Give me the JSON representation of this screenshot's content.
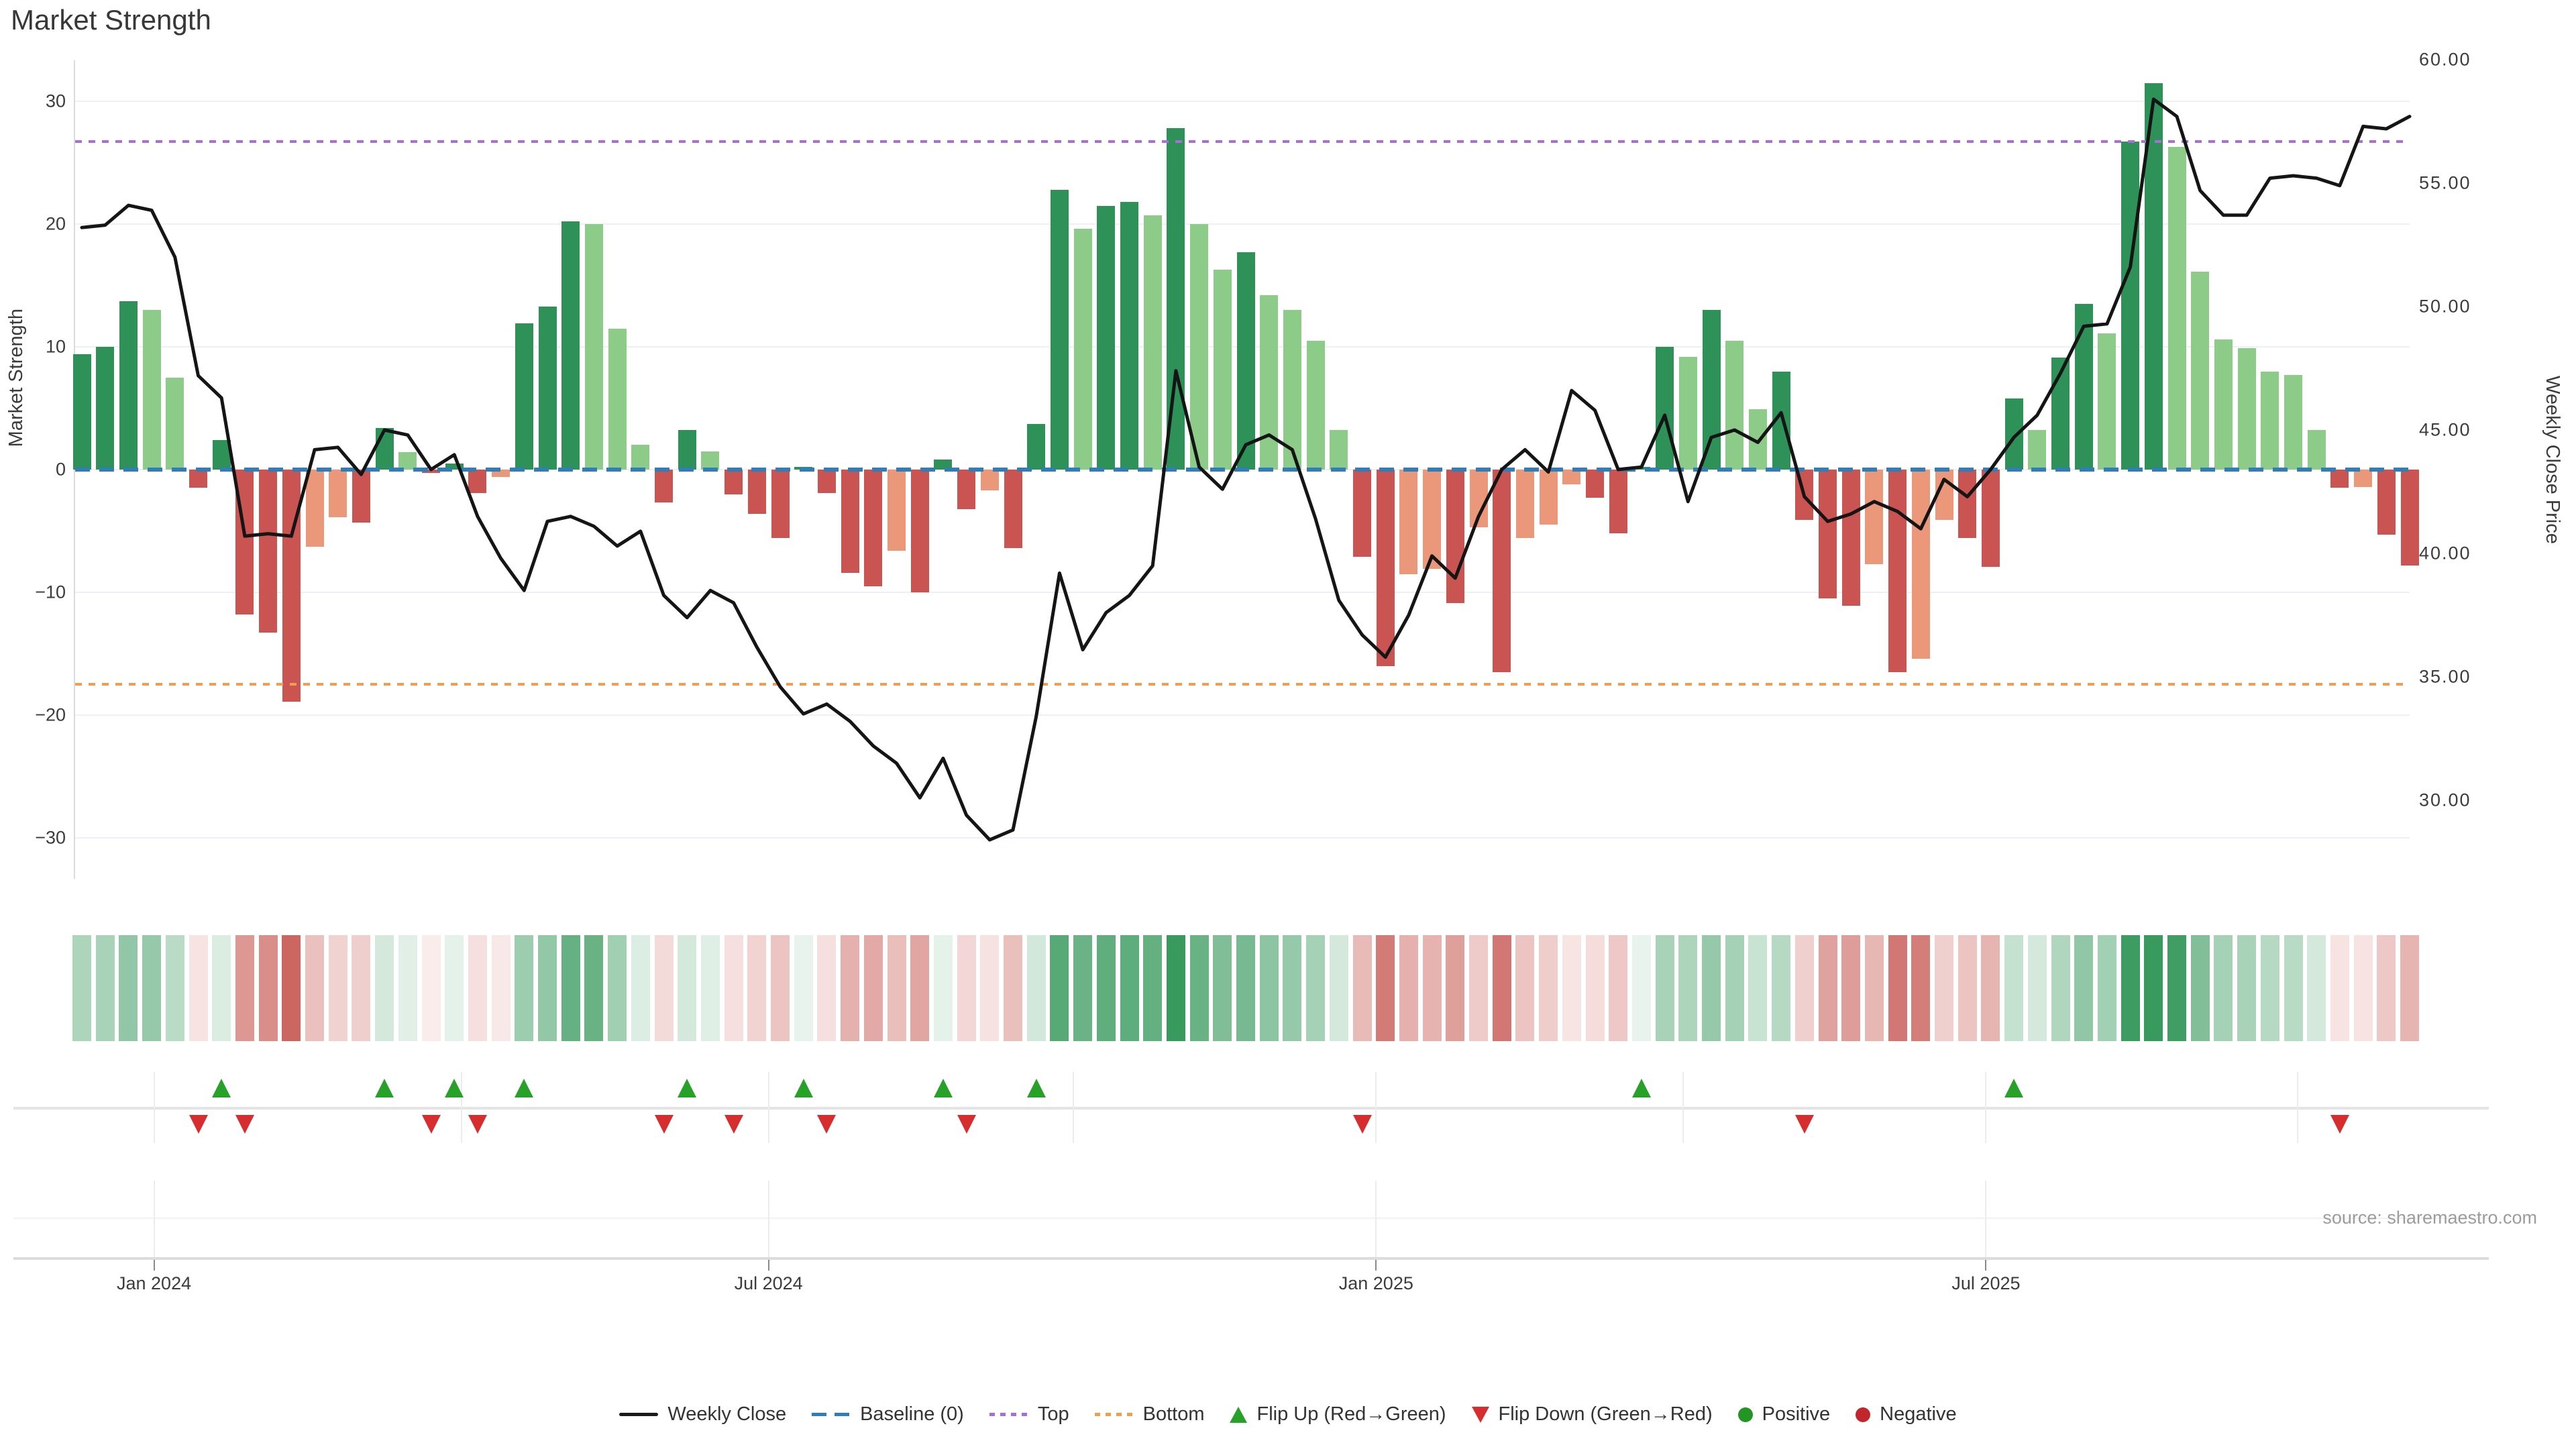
{
  "title": "Market Strength",
  "source_text": "source: sharemaestro.com",
  "axes": {
    "left_label": "Market Strength",
    "right_label": "Weekly Close Price",
    "left_ticks": [
      {
        "v": 30,
        "label": "30"
      },
      {
        "v": 20,
        "label": "20"
      },
      {
        "v": 10,
        "label": "10"
      },
      {
        "v": 0,
        "label": "0"
      },
      {
        "v": -10,
        "label": "−10"
      },
      {
        "v": -20,
        "label": "−20"
      },
      {
        "v": -30,
        "label": "−30"
      }
    ],
    "right_ticks": [
      {
        "v": 60,
        "label": "60.00"
      },
      {
        "v": 55,
        "label": "55.00"
      },
      {
        "v": 50,
        "label": "50.00"
      },
      {
        "v": 45,
        "label": "45.00"
      },
      {
        "v": 40,
        "label": "40.00"
      },
      {
        "v": 35,
        "label": "35.00"
      },
      {
        "v": 30,
        "label": "30.00"
      }
    ],
    "x_ticks": [
      {
        "week": 4.1,
        "label": "Jan 2024"
      },
      {
        "week": 30.5,
        "label": "Jul 2024"
      },
      {
        "week": 56.6,
        "label": "Jan 2025"
      },
      {
        "week": 82.8,
        "label": "Jul 2025"
      }
    ],
    "quarter_weeks": [
      4.1,
      17.3,
      30.5,
      43.6,
      56.6,
      69.8,
      82.8,
      96.2
    ]
  },
  "chart_data": {
    "type": "bar",
    "note": "weekly data, ~Dec 2023 to Nov 2025; bars = Market Strength (left axis), line = Weekly Close price (right axis)",
    "left_axis_range": [
      -33.3,
      33.3
    ],
    "right_axis_range": [
      28.0,
      60.2
    ],
    "reference_lines": {
      "baseline": 0,
      "top": 26.7,
      "bottom": -17.5
    },
    "series": [
      {
        "name": "Market Strength",
        "type": "bar",
        "axis": "left",
        "values": [
          9.4,
          10.0,
          13.7,
          13.0,
          7.5,
          -1.5,
          2.4,
          -11.8,
          -13.3,
          -18.9,
          -6.3,
          -3.9,
          -4.3,
          3.4,
          1.4,
          -0.3,
          0.5,
          -1.9,
          -0.6,
          11.9,
          13.3,
          20.2,
          20.0,
          11.5,
          2.0,
          -2.7,
          3.2,
          1.5,
          -2.0,
          -3.6,
          -5.6,
          0.2,
          -1.9,
          -8.4,
          -9.5,
          -6.6,
          -10.0,
          0.8,
          -3.2,
          -1.7,
          -6.4,
          3.7,
          22.8,
          19.6,
          21.5,
          21.8,
          20.7,
          27.8,
          20.0,
          16.3,
          17.7,
          14.2,
          13.0,
          10.5,
          3.2,
          -7.1,
          -16.0,
          -8.5,
          -8.1,
          -10.9,
          -4.7,
          -16.5,
          -5.6,
          -4.5,
          -1.2,
          -2.3,
          -5.2,
          0.2,
          10.0,
          9.2,
          13.0,
          10.5,
          4.9,
          8.0,
          -4.1,
          -10.5,
          -11.1,
          -7.7,
          -16.5,
          -15.4,
          -4.1,
          -5.6,
          -7.9,
          5.8,
          3.2,
          9.1,
          13.5,
          11.1,
          26.7,
          31.5,
          26.3,
          16.1,
          10.6,
          9.9,
          8.0,
          7.7,
          3.2,
          -1.5,
          -1.4,
          -5.3,
          -7.8
        ]
      },
      {
        "name": "Weekly Close",
        "type": "line",
        "axis": "right",
        "values": [
          53.2,
          53.3,
          54.1,
          53.9,
          52.0,
          47.2,
          46.3,
          40.7,
          40.8,
          40.7,
          44.2,
          44.3,
          43.2,
          45.0,
          44.8,
          43.4,
          44.0,
          41.5,
          39.8,
          38.5,
          41.3,
          41.5,
          41.1,
          40.3,
          40.9,
          38.3,
          37.4,
          38.5,
          38.0,
          36.2,
          34.6,
          33.5,
          33.9,
          33.2,
          32.2,
          31.5,
          30.1,
          31.7,
          29.4,
          28.4,
          28.8,
          33.4,
          39.2,
          36.1,
          37.6,
          38.3,
          39.5,
          47.4,
          43.5,
          42.6,
          44.4,
          44.8,
          44.2,
          41.4,
          38.1,
          36.7,
          35.8,
          37.5,
          39.9,
          39.0,
          41.5,
          43.4,
          44.2,
          43.3,
          46.6,
          45.8,
          43.4,
          43.5,
          45.6,
          42.1,
          44.7,
          45.0,
          44.5,
          45.7,
          42.3,
          41.3,
          41.6,
          42.1,
          41.7,
          41.0,
          43.0,
          42.3,
          43.4,
          44.7,
          45.6,
          47.3,
          49.2,
          49.3,
          51.6,
          58.4,
          57.7,
          54.7,
          53.7,
          53.7,
          55.2,
          55.3,
          55.2,
          54.9,
          57.3,
          57.2,
          57.7
        ]
      }
    ],
    "flip_up_weeks": [
      7,
      14,
      17,
      20,
      27,
      32,
      38,
      42,
      68,
      84
    ],
    "flip_down_weeks": [
      6,
      8,
      16,
      18,
      26,
      29,
      33,
      39,
      56,
      75,
      98
    ],
    "heatmap_strip": "same weekly values rendered as color intensity cells (green positive, red negative)"
  },
  "legend": {
    "items": [
      {
        "label": "Weekly Close",
        "glyph": "line",
        "color": "#1a1a1a"
      },
      {
        "label": "Baseline (0)",
        "glyph": "dashes",
        "color": "#2e7ebc"
      },
      {
        "label": "Top",
        "glyph": "dots",
        "color": "#ab6ddb"
      },
      {
        "label": "Bottom",
        "glyph": "dots",
        "color": "#f09d4e"
      },
      {
        "label": "Flip Up (Red→Green)",
        "glyph": "triangle-up",
        "color": "#27a127"
      },
      {
        "label": "Flip Down (Green→Red)",
        "glyph": "triangle-down",
        "color": "#d62e2e"
      },
      {
        "label": "Positive",
        "glyph": "circle",
        "color": "#229622"
      },
      {
        "label": "Negative",
        "glyph": "circle",
        "color": "#c0262c"
      }
    ]
  },
  "colors": {
    "bar_pos_strong": "#2e9158",
    "bar_pos_weak": "#8ccb88",
    "bar_neg_strong": "#c95452",
    "bar_neg_weak": "#ea977a",
    "baseline": "#2e7ebc",
    "top_line": "#ab6ddb",
    "bottom_line": "#f09d4e",
    "price_line": "#151515",
    "grid": "#edf0f5",
    "flip_up": "#27a127",
    "flip_down": "#d62e2e"
  }
}
